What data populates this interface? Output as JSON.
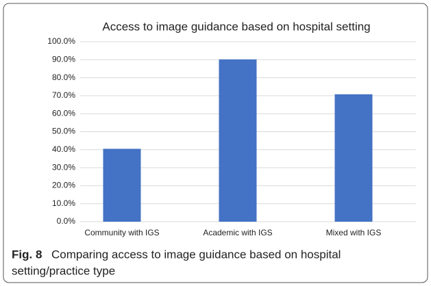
{
  "chart_data": {
    "type": "bar",
    "title": "Access to image guidance based on hospital setting",
    "categories": [
      "Community with IGS",
      "Academic with IGS",
      "Mixed with IGS"
    ],
    "values": [
      40.5,
      90.2,
      70.8
    ],
    "color": "#4472c4",
    "ylim": [
      0,
      100
    ],
    "yticks": [
      {
        "value": 0,
        "label": "0.0%"
      },
      {
        "value": 10,
        "label": "10.0%"
      },
      {
        "value": 20,
        "label": "20.0%"
      },
      {
        "value": 30,
        "label": "30.0%"
      },
      {
        "value": 40,
        "label": "40.0%"
      },
      {
        "value": 50,
        "label": "50.0%"
      },
      {
        "value": 60,
        "label": "60.0%"
      },
      {
        "value": 70,
        "label": "70.0%"
      },
      {
        "value": 80,
        "label": "80.0%"
      },
      {
        "value": 90,
        "label": "90.0%"
      },
      {
        "value": 100,
        "label": "100.0%"
      }
    ],
    "grid": true
  },
  "figure_caption": {
    "label": "Fig. 8",
    "text": "Comparing access to image guidance based on hospital",
    "text_2": "setting/practice type"
  }
}
